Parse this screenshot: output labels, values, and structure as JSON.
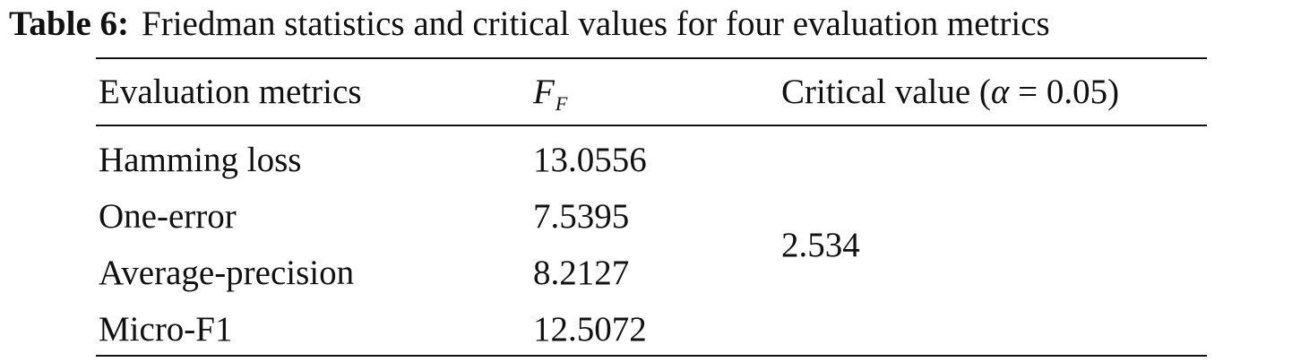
{
  "caption": {
    "label": "Table 6:",
    "text": "Friedman statistics and critical values for four evaluation metrics"
  },
  "table": {
    "headers": {
      "metric": "Evaluation metrics",
      "ff_main": "F",
      "ff_sub": "F",
      "crit_prefix": "Critical value (",
      "crit_alpha": "α",
      "crit_suffix": " = 0.05)"
    },
    "rows": [
      {
        "metric": "Hamming loss",
        "ff": "13.0556"
      },
      {
        "metric": "One-error",
        "ff": "7.5395"
      },
      {
        "metric": "Average-precision",
        "ff": "8.2127"
      },
      {
        "metric": "Micro-F1",
        "ff": "12.5072"
      }
    ],
    "critical_value": "2.534"
  }
}
